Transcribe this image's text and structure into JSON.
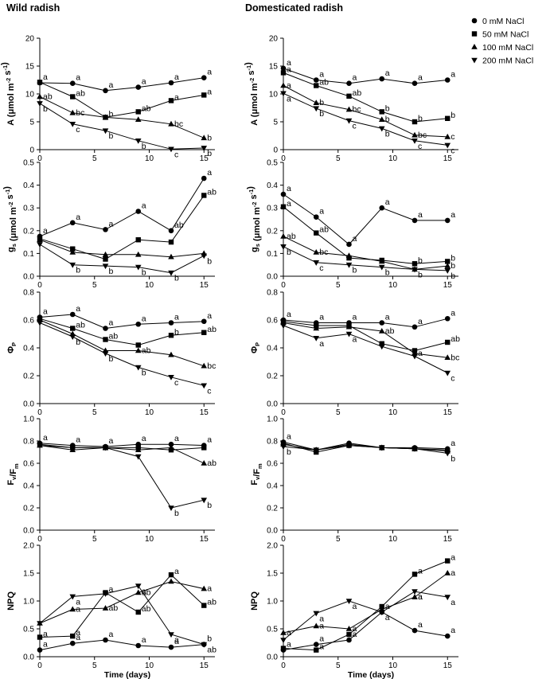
{
  "panel_titles": [
    "Wild radish",
    "Domesticated radish"
  ],
  "x_label": "Time (days)",
  "legend": [
    {
      "name": "0 mM NaCl",
      "marker": "circle"
    },
    {
      "name": "50 mM NaCl",
      "marker": "square"
    },
    {
      "name": "100 mM NaCl",
      "marker": "triangle-up"
    },
    {
      "name": "200 mM NaCl",
      "marker": "triangle-down"
    }
  ],
  "chart_data": [
    {
      "type": "line",
      "title": "Wild radish",
      "row": "A",
      "ylabel": [
        "A (μmol m",
        "-2",
        " s",
        "-1",
        ")"
      ],
      "ylim": [
        0,
        20
      ],
      "yticks": [
        "0",
        "5",
        "10",
        "15",
        "20"
      ],
      "xlim": [
        0,
        16
      ],
      "xticks": [
        "0",
        "5",
        "10",
        "15"
      ],
      "xlabel": "Time (days)",
      "x": [
        0,
        3,
        6,
        9,
        12,
        15
      ],
      "series": [
        {
          "name": "0 mM NaCl",
          "values": [
            12.0,
            11.9,
            10.6,
            11.2,
            12.0,
            12.9
          ],
          "labels": [
            "a",
            "a",
            "a",
            "a",
            "a",
            "a"
          ]
        },
        {
          "name": "50 mM NaCl",
          "values": [
            12.1,
            9.5,
            5.8,
            6.8,
            8.8,
            9.8
          ],
          "labels": [
            "",
            "ab",
            "b",
            "ab",
            "a",
            "a"
          ]
        },
        {
          "name": "100 mM NaCl",
          "values": [
            9.5,
            6.6,
            5.8,
            5.4,
            4.6,
            2.1
          ],
          "labels": [
            "ab",
            "bc",
            "",
            "",
            "bc",
            "b"
          ]
        },
        {
          "name": "200 mM NaCl",
          "values": [
            8.3,
            4.6,
            3.4,
            1.6,
            0.1,
            0.3
          ],
          "labels": [
            "b",
            "c",
            "b",
            "b",
            "c",
            "b"
          ]
        }
      ]
    },
    {
      "type": "line",
      "title": "Domesticated radish",
      "row": "A",
      "ylabel": [
        "A (μmol m",
        "-2",
        " s",
        "-1",
        ")"
      ],
      "ylim": [
        0,
        20
      ],
      "yticks": [
        "0",
        "5",
        "10",
        "15",
        "20"
      ],
      "xlim": [
        0,
        16
      ],
      "xticks": [
        "0",
        "5",
        "10",
        "15"
      ],
      "xlabel": "Time (days)",
      "x": [
        0,
        3,
        6,
        9,
        12,
        15
      ],
      "series": [
        {
          "name": "0 mM NaCl",
          "values": [
            14.6,
            12.5,
            11.9,
            12.7,
            11.9,
            12.5
          ],
          "labels": [
            "a",
            "a",
            "a",
            "a",
            "a",
            "a"
          ]
        },
        {
          "name": "50 mM NaCl",
          "values": [
            13.8,
            11.5,
            9.6,
            6.8,
            5.0,
            5.6
          ],
          "labels": [
            "a",
            "ab",
            "ab",
            "b",
            "b",
            "b"
          ]
        },
        {
          "name": "100 mM NaCl",
          "values": [
            11.5,
            8.4,
            7.2,
            5.4,
            2.6,
            2.3
          ],
          "labels": [
            "a",
            "b",
            "bc",
            "b",
            "bc",
            "c"
          ]
        },
        {
          "name": "200 mM NaCl",
          "values": [
            10.1,
            7.4,
            5.2,
            3.8,
            1.6,
            0.8
          ],
          "labels": [
            "a",
            "b",
            "c",
            "b",
            "c",
            "c"
          ]
        }
      ]
    },
    {
      "type": "line",
      "title": "Wild radish",
      "row": "gs",
      "ylabel": [
        "g",
        "s",
        " (μmol m",
        "-2",
        " s",
        "-1",
        ")"
      ],
      "ylim": [
        0,
        0.5
      ],
      "yticks": [
        "0.0",
        "0.1",
        "0.2",
        "0.3",
        "0.4",
        "0.5"
      ],
      "xlim": [
        0,
        16
      ],
      "xticks": [
        "0",
        "5",
        "10",
        "15"
      ],
      "xlabel": "Time (days)",
      "x": [
        0,
        3,
        6,
        9,
        12,
        15
      ],
      "series": [
        {
          "name": "0 mM NaCl",
          "values": [
            0.175,
            0.235,
            0.205,
            0.285,
            0.2,
            0.43
          ],
          "labels": [
            "a",
            "a",
            "a",
            "a",
            "ab",
            "a"
          ]
        },
        {
          "name": "50 mM NaCl",
          "values": [
            0.165,
            0.12,
            0.075,
            0.16,
            0.15,
            0.355
          ],
          "labels": [
            "",
            "",
            "",
            "",
            "",
            "ab"
          ]
        },
        {
          "name": "100 mM NaCl",
          "values": [
            0.16,
            0.105,
            0.095,
            0.095,
            0.085,
            0.1
          ],
          "labels": [
            "",
            "",
            "",
            "",
            "",
            ""
          ]
        },
        {
          "name": "200 mM NaCl",
          "values": [
            0.14,
            0.05,
            0.045,
            0.04,
            0.015,
            0.09
          ],
          "labels": [
            "",
            "b",
            "b",
            "b",
            "b",
            "b"
          ]
        }
      ]
    },
    {
      "type": "line",
      "title": "Domesticated radish",
      "row": "gs",
      "ylabel": [
        "g",
        "s",
        " (μmol m",
        "-2",
        " s",
        "-1",
        ")"
      ],
      "ylim": [
        0,
        0.5
      ],
      "yticks": [
        "0.0",
        "0.1",
        "0.2",
        "0.3",
        "0.4",
        "0.5"
      ],
      "xlim": [
        0,
        16
      ],
      "xticks": [
        "0",
        "5",
        "10",
        "15"
      ],
      "xlabel": "Time (days)",
      "x": [
        0,
        3,
        6,
        9,
        12,
        15
      ],
      "series": [
        {
          "name": "0 mM NaCl",
          "values": [
            0.36,
            0.26,
            0.14,
            0.3,
            0.245,
            0.245
          ],
          "labels": [
            "a",
            "a",
            "a",
            "a",
            "a",
            "a"
          ]
        },
        {
          "name": "50 mM NaCl",
          "values": [
            0.305,
            0.19,
            0.08,
            0.07,
            0.055,
            0.065
          ],
          "labels": [
            "a",
            "ab",
            "",
            "",
            "b",
            "b"
          ]
        },
        {
          "name": "100 mM NaCl",
          "values": [
            0.175,
            0.105,
            0.09,
            0.065,
            0.03,
            0.045
          ],
          "labels": [
            "ab",
            "bc",
            "",
            "",
            "",
            "b"
          ]
        },
        {
          "name": "200 mM NaCl",
          "values": [
            0.13,
            0.06,
            0.05,
            0.04,
            0.03,
            0.025
          ],
          "labels": [
            "b",
            "c",
            "b",
            "b",
            "b",
            "b"
          ]
        }
      ]
    },
    {
      "type": "line",
      "title": "Wild radish",
      "row": "PhiP",
      "ylabel": [
        "Φ",
        "P"
      ],
      "ylim": [
        0,
        0.8
      ],
      "yticks": [
        "0.0",
        "0.2",
        "0.4",
        "0.6",
        "0.8"
      ],
      "xlim": [
        0,
        16
      ],
      "xticks": [
        "0",
        "5",
        "10",
        "15"
      ],
      "xlabel": "Time (days)",
      "x": [
        0,
        3,
        6,
        9,
        12,
        15
      ],
      "series": [
        {
          "name": "0 mM NaCl",
          "values": [
            0.62,
            0.64,
            0.54,
            0.57,
            0.58,
            0.59
          ],
          "labels": [
            "a",
            "a",
            "a",
            "a",
            "a",
            "a"
          ]
        },
        {
          "name": "50 mM NaCl",
          "values": [
            0.61,
            0.54,
            0.46,
            0.42,
            0.49,
            0.51
          ],
          "labels": [
            "",
            "ab",
            "ab",
            "",
            "b",
            "ab"
          ]
        },
        {
          "name": "100 mM NaCl",
          "values": [
            0.6,
            0.5,
            0.38,
            0.38,
            0.35,
            0.27
          ],
          "labels": [
            "",
            "",
            "",
            "ab",
            "",
            "bc"
          ]
        },
        {
          "name": "200 mM NaCl",
          "values": [
            0.58,
            0.48,
            0.36,
            0.26,
            0.19,
            0.13
          ],
          "labels": [
            "",
            "b",
            "b",
            "b",
            "c",
            "c"
          ]
        }
      ]
    },
    {
      "type": "line",
      "title": "Domesticated radish",
      "row": "PhiP",
      "ylabel": [
        "Φ",
        "P"
      ],
      "ylim": [
        0,
        0.8
      ],
      "yticks": [
        "0.0",
        "0.2",
        "0.4",
        "0.6",
        "0.8"
      ],
      "xlim": [
        0,
        16
      ],
      "xticks": [
        "0",
        "5",
        "10",
        "15"
      ],
      "xlabel": "Time (days)",
      "x": [
        0,
        3,
        6,
        9,
        12,
        15
      ],
      "series": [
        {
          "name": "0 mM NaCl",
          "values": [
            0.6,
            0.58,
            0.58,
            0.58,
            0.55,
            0.61
          ],
          "labels": [
            "a",
            "a",
            "a",
            "a",
            "a",
            "a"
          ]
        },
        {
          "name": "50 mM NaCl",
          "values": [
            0.59,
            0.56,
            0.56,
            0.43,
            0.38,
            0.44
          ],
          "labels": [
            "",
            "",
            "",
            "",
            "",
            "ab"
          ]
        },
        {
          "name": "100 mM NaCl",
          "values": [
            0.58,
            0.54,
            0.55,
            0.52,
            0.36,
            0.33
          ],
          "labels": [
            "",
            "",
            "",
            "ab",
            "a",
            "bc"
          ]
        },
        {
          "name": "200 mM NaCl",
          "values": [
            0.56,
            0.47,
            0.5,
            0.41,
            0.34,
            0.22
          ],
          "labels": [
            "",
            "a",
            "a",
            "",
            "",
            "c"
          ]
        }
      ]
    },
    {
      "type": "line",
      "title": "Wild radish",
      "row": "FvFm",
      "ylabel": [
        "F",
        "v",
        "/F",
        "m"
      ],
      "ylim": [
        0,
        1.0
      ],
      "yticks": [
        "0.0",
        "0.2",
        "0.4",
        "0.6",
        "0.8",
        "1.0"
      ],
      "xlim": [
        0,
        16
      ],
      "xticks": [
        "0",
        "5",
        "10",
        "15"
      ],
      "xlabel": "Time (days)",
      "x": [
        0,
        3,
        6,
        9,
        12,
        15
      ],
      "series": [
        {
          "name": "0 mM NaCl",
          "values": [
            0.78,
            0.76,
            0.75,
            0.77,
            0.77,
            0.76
          ],
          "labels": [
            "a",
            "a",
            "a",
            "a",
            "a",
            "a"
          ]
        },
        {
          "name": "50 mM NaCl",
          "values": [
            0.77,
            0.74,
            0.74,
            0.74,
            0.72,
            0.74
          ],
          "labels": [
            "",
            "",
            "",
            "",
            "",
            ""
          ]
        },
        {
          "name": "100 mM NaCl",
          "values": [
            0.76,
            0.72,
            0.74,
            0.72,
            0.74,
            0.6
          ],
          "labels": [
            "",
            "",
            "",
            "",
            "",
            "ab"
          ]
        },
        {
          "name": "200 mM NaCl",
          "values": [
            0.76,
            0.74,
            0.74,
            0.66,
            0.2,
            0.27
          ],
          "labels": [
            "",
            "",
            "",
            "",
            "b",
            "b"
          ]
        }
      ]
    },
    {
      "type": "line",
      "title": "Domesticated radish",
      "row": "FvFm",
      "ylabel": [
        "F",
        "v",
        "/F",
        "m"
      ],
      "ylim": [
        0,
        1.0
      ],
      "yticks": [
        "0.0",
        "0.2",
        "0.4",
        "0.6",
        "0.8",
        "1.0"
      ],
      "xlim": [
        0,
        16
      ],
      "xticks": [
        "0",
        "5",
        "10",
        "15"
      ],
      "xlabel": "Time (days)",
      "x": [
        0,
        3,
        6,
        9,
        12,
        15
      ],
      "series": [
        {
          "name": "0 mM NaCl",
          "values": [
            0.79,
            0.72,
            0.78,
            0.74,
            0.74,
            0.73
          ],
          "labels": [
            "a",
            "",
            "",
            "",
            "",
            "a"
          ]
        },
        {
          "name": "50 mM NaCl",
          "values": [
            0.78,
            0.7,
            0.76,
            0.74,
            0.73,
            0.71
          ],
          "labels": [
            "",
            "",
            "",
            "",
            "",
            ""
          ]
        },
        {
          "name": "100 mM NaCl",
          "values": [
            0.77,
            0.72,
            0.77,
            0.74,
            0.73,
            0.72
          ],
          "labels": [
            "",
            "",
            "",
            "",
            "",
            ""
          ]
        },
        {
          "name": "200 mM NaCl",
          "values": [
            0.75,
            0.72,
            0.76,
            0.74,
            0.73,
            0.69
          ],
          "labels": [
            "b",
            "",
            "",
            "",
            "",
            "b"
          ]
        }
      ]
    },
    {
      "type": "line",
      "title": "Wild radish",
      "row": "NPQ",
      "ylabel": [
        "NPQ"
      ],
      "ylim": [
        0,
        2.0
      ],
      "yticks": [
        "0.0",
        "0.5",
        "1.0",
        "1.5",
        "2.0"
      ],
      "xlim": [
        0,
        16
      ],
      "xticks": [
        "0",
        "5",
        "10",
        "15"
      ],
      "xlabel": "Time (days)",
      "x": [
        0,
        3,
        6,
        9,
        12,
        15
      ],
      "series": [
        {
          "name": "0 mM NaCl",
          "values": [
            0.12,
            0.24,
            0.3,
            0.2,
            0.17,
            0.22
          ],
          "labels": [
            "a",
            "a",
            "a",
            "a",
            "a",
            "b"
          ]
        },
        {
          "name": "50 mM NaCl",
          "values": [
            0.35,
            0.37,
            1.15,
            0.8,
            1.47,
            0.92
          ],
          "labels": [
            "a",
            "a",
            "a",
            "ab",
            "a",
            "ab"
          ]
        },
        {
          "name": "100 mM NaCl",
          "values": [
            0.6,
            0.85,
            0.87,
            1.15,
            1.35,
            1.22
          ],
          "labels": [
            "",
            "a",
            "ab",
            "ab",
            "",
            "a"
          ]
        },
        {
          "name": "200 mM NaCl",
          "values": [
            0.6,
            1.08,
            1.13,
            1.27,
            0.4,
            0.22
          ],
          "labels": [
            "",
            "a",
            "",
            "a",
            "a",
            "ab"
          ]
        }
      ]
    },
    {
      "type": "line",
      "title": "Domesticated radish",
      "row": "NPQ",
      "ylabel": [
        "NPQ"
      ],
      "ylim": [
        0,
        2.0
      ],
      "yticks": [
        "0.0",
        "0.5",
        "1.0",
        "1.5",
        "2.0"
      ],
      "xlim": [
        0,
        16
      ],
      "xticks": [
        "0",
        "5",
        "10",
        "15"
      ],
      "xlabel": "Time (days)",
      "x": [
        0,
        3,
        6,
        9,
        12,
        15
      ],
      "series": [
        {
          "name": "0 mM NaCl",
          "values": [
            0.12,
            0.22,
            0.3,
            0.8,
            0.47,
            0.37
          ],
          "labels": [
            "a",
            "a",
            "a",
            "a",
            "a",
            "a"
          ]
        },
        {
          "name": "50 mM NaCl",
          "values": [
            0.15,
            0.12,
            0.4,
            0.9,
            1.48,
            1.72
          ],
          "labels": [
            "",
            "a",
            "",
            "",
            "a",
            "a"
          ]
        },
        {
          "name": "100 mM NaCl",
          "values": [
            0.43,
            0.55,
            0.5,
            0.85,
            1.07,
            1.5
          ],
          "labels": [
            "a",
            "a",
            "a",
            "",
            "a",
            "a"
          ]
        },
        {
          "name": "200 mM NaCl",
          "values": [
            0.3,
            0.78,
            1.0,
            0.8,
            1.17,
            1.07
          ],
          "labels": [
            "",
            "a",
            "a",
            "a",
            "a",
            "a"
          ]
        }
      ]
    }
  ]
}
